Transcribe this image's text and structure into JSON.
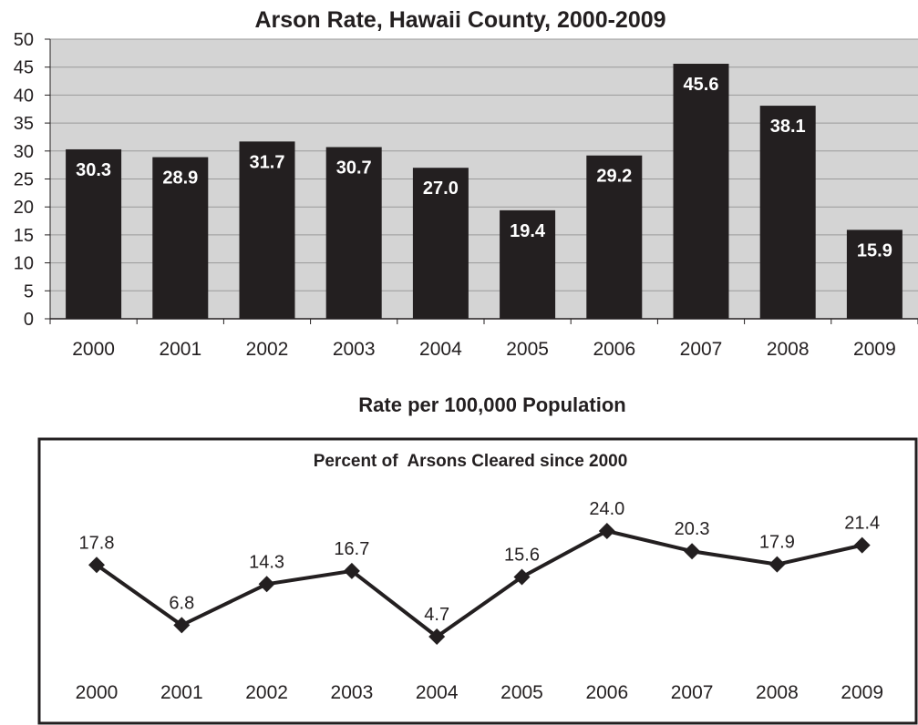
{
  "chart_data": [
    {
      "type": "bar",
      "title": "Arson Rate, Hawaii County, 2000-2009",
      "xlabel": "Rate per 100,000 Population",
      "ylabel": "",
      "categories": [
        "2000",
        "2001",
        "2002",
        "2003",
        "2004",
        "2005",
        "2006",
        "2007",
        "2008",
        "2009"
      ],
      "values": [
        30.3,
        28.9,
        31.7,
        30.7,
        27.0,
        19.4,
        29.2,
        45.6,
        38.1,
        15.9
      ],
      "value_labels": [
        "30.3",
        "28.9",
        "31.7",
        "30.7",
        "27.0",
        "19.4",
        "29.2",
        "45.6",
        "38.1",
        "15.9"
      ],
      "yticks": [
        "0",
        "5",
        "10",
        "15",
        "20",
        "25",
        "30",
        "35",
        "40",
        "45",
        "50"
      ],
      "ylim": [
        0,
        50
      ],
      "grid": true,
      "colors": {
        "bar": "#231f20",
        "plot_bg": "#d4d4d4",
        "grid": "#9a9a9a",
        "label": "#ffffff"
      }
    },
    {
      "type": "line",
      "title": "Percent of  Arsons Cleared since 2000",
      "categories": [
        "2000",
        "2001",
        "2002",
        "2003",
        "2004",
        "2005",
        "2006",
        "2007",
        "2008",
        "2009"
      ],
      "values": [
        17.8,
        6.8,
        14.3,
        16.7,
        4.7,
        15.6,
        24.0,
        20.3,
        17.9,
        21.4
      ],
      "value_labels": [
        "17.8",
        "6.8",
        "14.3",
        "16.7",
        "4.7",
        "15.6",
        "24.0",
        "20.3",
        "17.9",
        "21.4"
      ],
      "grid": false,
      "marker": "diamond",
      "colors": {
        "line": "#231f20",
        "frame": "#231f20"
      }
    }
  ]
}
